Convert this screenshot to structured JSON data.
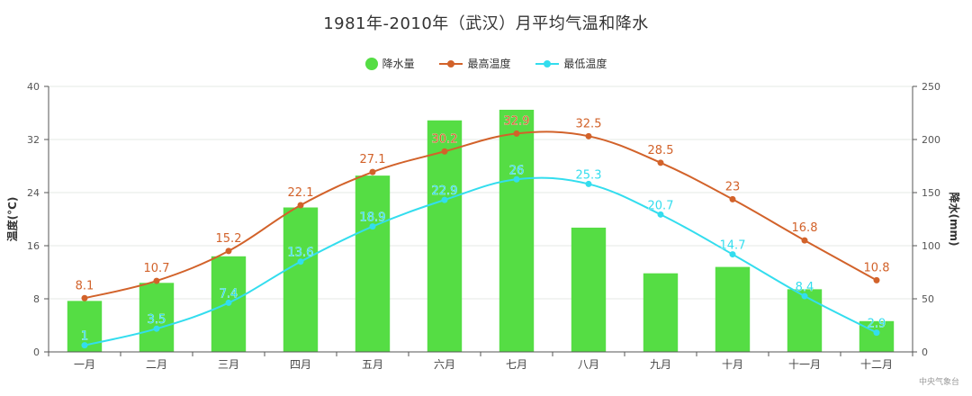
{
  "title": "1981年-2010年（武汉）月平均气温和降水",
  "legend": {
    "precip": "降水量",
    "max": "最高温度",
    "min": "最低温度"
  },
  "colors": {
    "precip": "#55dd44",
    "max": "#d2622a",
    "min": "#33ddee",
    "axis": "#555555",
    "grid": "#e6eae6"
  },
  "watermark": "中央气象台",
  "chart_data": {
    "type": "bar",
    "categories": [
      "一月",
      "二月",
      "三月",
      "四月",
      "五月",
      "六月",
      "七月",
      "八月",
      "九月",
      "十月",
      "十一月",
      "十二月"
    ],
    "y_left": {
      "label": "温度(°C)",
      "range": [
        0,
        40
      ],
      "ticks": [
        0,
        8,
        16,
        24,
        32,
        40
      ]
    },
    "y_right": {
      "label": "降水(mm)",
      "range": [
        0,
        250
      ],
      "ticks": [
        0,
        50,
        100,
        150,
        200,
        250
      ]
    },
    "series": [
      {
        "name": "降水量",
        "type": "bar",
        "axis": "right",
        "values": [
          48,
          65,
          90,
          136,
          166,
          218,
          228,
          117,
          74,
          80,
          59,
          29
        ]
      },
      {
        "name": "最高温度",
        "type": "line",
        "axis": "left",
        "values": [
          8.1,
          10.7,
          15.2,
          22.1,
          27.1,
          30.2,
          32.9,
          32.5,
          28.5,
          23,
          16.8,
          10.8
        ]
      },
      {
        "name": "最低温度",
        "type": "line",
        "axis": "left",
        "values": [
          1,
          3.5,
          7.4,
          13.6,
          18.9,
          22.9,
          26,
          25.3,
          20.7,
          14.7,
          8.4,
          2.9
        ]
      }
    ],
    "grid": true,
    "legend_position": "top-center"
  }
}
